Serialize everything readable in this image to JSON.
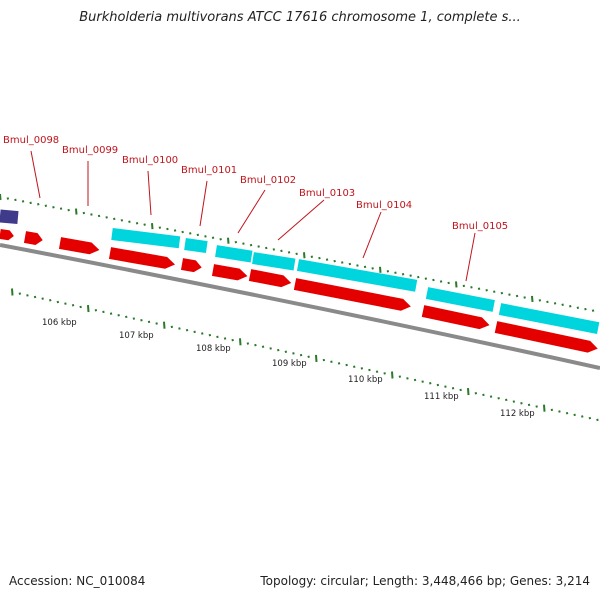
{
  "title": "Burkholderia multivorans ATCC 17616 chromosome 1, complete s...",
  "footer": {
    "accession": "Accession: NC_010084",
    "stats": "Topology: circular; Length: 3,448,466 bp; Genes: 3,214"
  },
  "colors": {
    "cds_forward": "#e50000",
    "cds_reverse": "#00d5dd",
    "other_feature": "#3f3a8a",
    "backbone": "#8a8a8a",
    "tick_major": "#2a7a2a",
    "tick_minor": "#2a7a2a",
    "label_text": "#c0141c",
    "label_line": "#c0141c"
  },
  "gene_labels": [
    "Bmul_0098",
    "Bmul_0099",
    "Bmul_0100",
    "Bmul_0101",
    "Bmul_0102",
    "Bmul_0103",
    "Bmul_0104",
    "Bmul_0105"
  ],
  "kbp_labels": [
    "106 kbp",
    "107 kbp",
    "108 kbp",
    "109 kbp",
    "110 kbp",
    "111 kbp",
    "112 kbp"
  ]
}
